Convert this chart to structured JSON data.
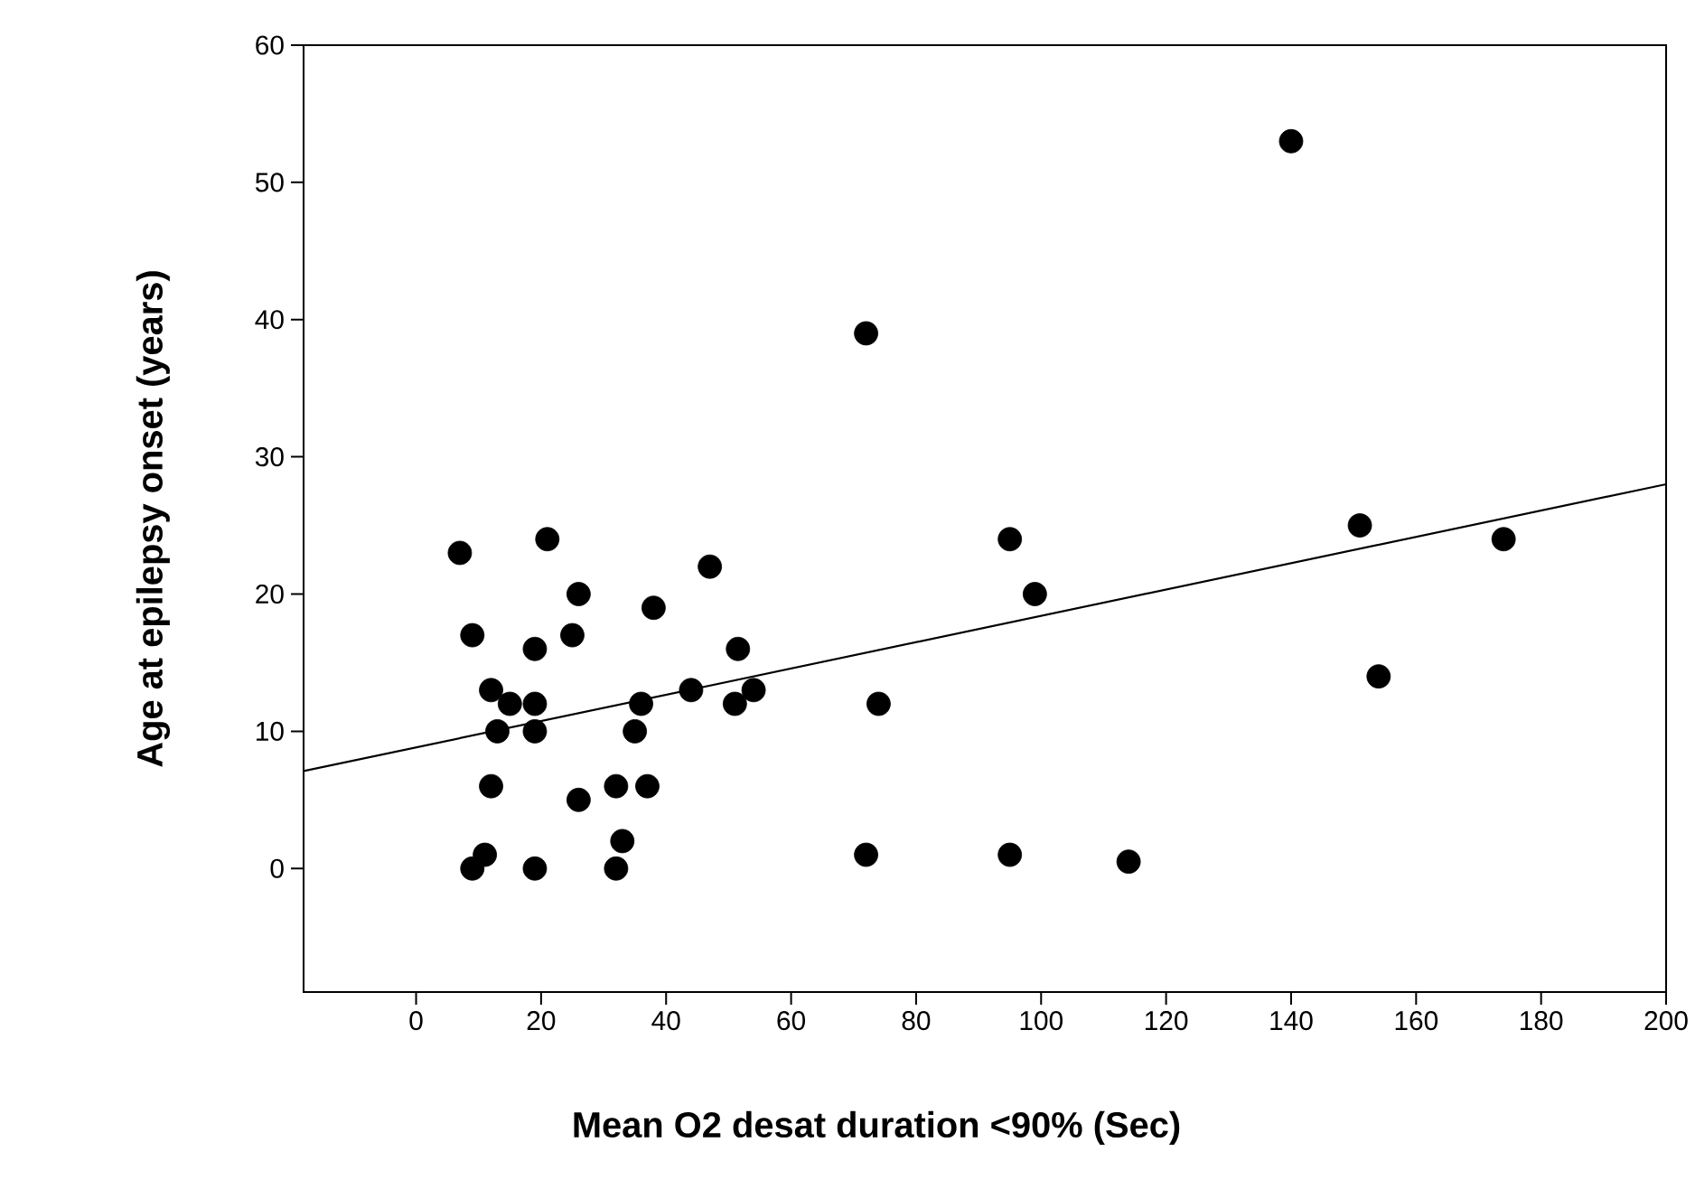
{
  "chart_data": {
    "type": "scatter",
    "xlabel": "Mean O2 desat duration <90% (Sec)",
    "ylabel": "Age at epilepsy onset (years)",
    "xlim": [
      -18,
      200
    ],
    "ylim": [
      -9,
      60
    ],
    "xticks": [
      0,
      20,
      40,
      60,
      80,
      100,
      120,
      140,
      160,
      180,
      200
    ],
    "yticks": [
      0,
      10,
      20,
      30,
      40,
      50,
      60
    ],
    "marker": "circle",
    "grid": false,
    "series": [
      {
        "color": "#000000",
        "x": [
          7,
          9,
          9,
          11,
          12,
          12,
          13,
          15,
          19,
          19,
          19,
          19,
          21,
          25,
          26,
          26,
          32,
          32,
          33,
          35,
          36,
          37,
          38,
          44,
          47,
          51,
          51.5,
          54,
          72,
          72,
          74,
          95,
          95,
          99,
          114,
          140,
          151,
          154,
          174
        ],
        "values": [
          23,
          17,
          0,
          1,
          13,
          6,
          10,
          12,
          12,
          16,
          10,
          0,
          24,
          17,
          20,
          5,
          6,
          0,
          2,
          10,
          12,
          6,
          19,
          13,
          22,
          12,
          16,
          13,
          39,
          1,
          12,
          24,
          1,
          20,
          0.5,
          53,
          25,
          14,
          24
        ]
      },
      {
        "type": "line",
        "marker": "none",
        "color": "#000000",
        "x": [
          -18,
          200
        ],
        "values": [
          7.1,
          28
        ]
      }
    ]
  }
}
